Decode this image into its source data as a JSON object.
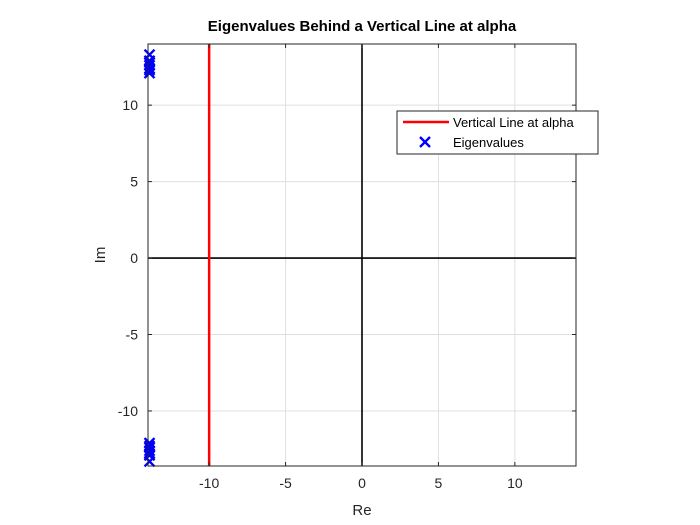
{
  "chart_data": {
    "type": "scatter",
    "title": "Eigenvalues Behind a Vertical Line at alpha",
    "xlabel": "Re",
    "ylabel": "Im",
    "xlim": [
      -14,
      14
    ],
    "ylim": [
      -13.6,
      14
    ],
    "xticks": [
      -10,
      -5,
      0,
      5,
      10
    ],
    "xtick_labels": [
      "-10",
      "-5",
      "0",
      "5",
      "10"
    ],
    "yticks": [
      -10,
      -5,
      0,
      5,
      10
    ],
    "ytick_labels": [
      "-10",
      "-5",
      "0",
      "5",
      "10"
    ],
    "grid": true,
    "legend_position": "top-right",
    "axis_lines": {
      "x0": 0,
      "y0": 0,
      "color": "#000000"
    },
    "series": [
      {
        "name": "Vertical Line at alpha",
        "kind": "line",
        "color": "#ff0000",
        "x": [
          -10,
          -10
        ],
        "y": [
          -13.6,
          14
        ]
      },
      {
        "name": "Eigenvalues",
        "kind": "scatter",
        "marker": "x",
        "color": "#0000ff",
        "x": [
          -13.9,
          -13.9,
          -13.9,
          -13.9,
          -13.9,
          -13.9,
          -13.9,
          -13.9,
          -13.9,
          -13.9,
          -13.9,
          -13.9,
          -13.9,
          -13.9
        ],
        "y": [
          13.3,
          12.9,
          12.6,
          12.3,
          12.1,
          12.8,
          12.4,
          -13.3,
          -12.9,
          -12.6,
          -12.3,
          -12.1,
          -12.8,
          -12.4
        ]
      }
    ]
  }
}
